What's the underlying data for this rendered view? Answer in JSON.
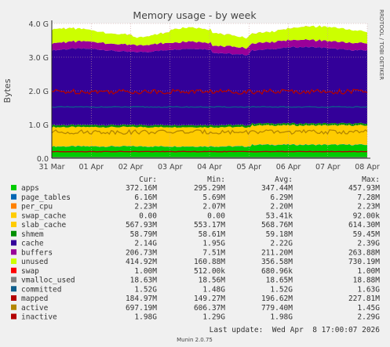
{
  "chart_data": {
    "type": "area",
    "title": "Memory usage - by week",
    "ylabel": "Bytes",
    "side_label": "RRDTOOL / TOBI OETIKER",
    "x_ticks": [
      "31 Mar",
      "01 Apr",
      "02 Apr",
      "03 Apr",
      "04 Apr",
      "05 Apr",
      "06 Apr",
      "07 Apr",
      "08 Apr"
    ],
    "y_ticks": [
      "0.0",
      "1.0 G",
      "2.0 G",
      "3.0 G",
      "4.0 G"
    ],
    "ylim": [
      0,
      4.0
    ],
    "grid": true,
    "columns": [
      "Cur:",
      "Min:",
      "Avg:",
      "Max:"
    ],
    "series": [
      {
        "name": "apps",
        "color": "#00cc00",
        "kind": "stack",
        "cur": "372.16M",
        "min": "295.29M",
        "avg": "347.44M",
        "max": "457.93M"
      },
      {
        "name": "page_tables",
        "color": "#0066b3",
        "kind": "stack",
        "cur": "6.16M",
        "min": "5.69M",
        "avg": "6.29M",
        "max": "7.28M"
      },
      {
        "name": "per_cpu",
        "color": "#ff8000",
        "kind": "stack",
        "cur": "2.23M",
        "min": "2.07M",
        "avg": "2.20M",
        "max": "2.23M"
      },
      {
        "name": "swap_cache",
        "color": "#ffcc00",
        "kind": "stack",
        "cur": "0.00",
        "min": "0.00",
        "avg": "53.41k",
        "max": "92.00k"
      },
      {
        "name": "slab_cache",
        "color": "#ffcc00",
        "kind": "stack",
        "cur": "567.93M",
        "min": "553.17M",
        "avg": "568.76M",
        "max": "614.30M"
      },
      {
        "name": "shmem",
        "color": "#008f00",
        "kind": "stack",
        "cur": "58.79M",
        "min": "58.61M",
        "avg": "59.18M",
        "max": "59.45M"
      },
      {
        "name": "cache",
        "color": "#330099",
        "kind": "stack",
        "cur": "2.14G",
        "min": "1.95G",
        "avg": "2.22G",
        "max": "2.39G"
      },
      {
        "name": "buffers",
        "color": "#990099",
        "kind": "stack",
        "cur": "206.73M",
        "min": "7.51M",
        "avg": "211.20M",
        "max": "263.88M"
      },
      {
        "name": "unused",
        "color": "#ccff00",
        "kind": "stack",
        "cur": "414.92M",
        "min": "160.88M",
        "avg": "356.58M",
        "max": "730.19M"
      },
      {
        "name": "swap",
        "color": "#ff0000",
        "kind": "stack",
        "cur": "1.00M",
        "min": "512.00k",
        "avg": "680.96k",
        "max": "1.00M"
      },
      {
        "name": "vmalloc_used",
        "color": "#808080",
        "kind": "line",
        "cur": "18.63M",
        "min": "18.56M",
        "avg": "18.65M",
        "max": "18.88M"
      },
      {
        "name": "committed",
        "color": "#0f5e8c",
        "kind": "line",
        "cur": "1.52G",
        "min": "1.48G",
        "avg": "1.52G",
        "max": "1.63G"
      },
      {
        "name": "mapped",
        "color": "#b30000",
        "kind": "line",
        "cur": "184.97M",
        "min": "149.27M",
        "avg": "196.62M",
        "max": "227.81M"
      },
      {
        "name": "active",
        "color": "#b38600",
        "kind": "line",
        "cur": "697.19M",
        "min": "606.37M",
        "avg": "779.40M",
        "max": "1.45G"
      },
      {
        "name": "inactive",
        "color": "#b30000",
        "kind": "line",
        "cur": "1.98G",
        "min": "1.29G",
        "avg": "1.98G",
        "max": "2.29G"
      }
    ],
    "last_update": "Last update:  Wed Apr  8 17:00:07 2026",
    "footer": "Munin 2.0.75"
  }
}
